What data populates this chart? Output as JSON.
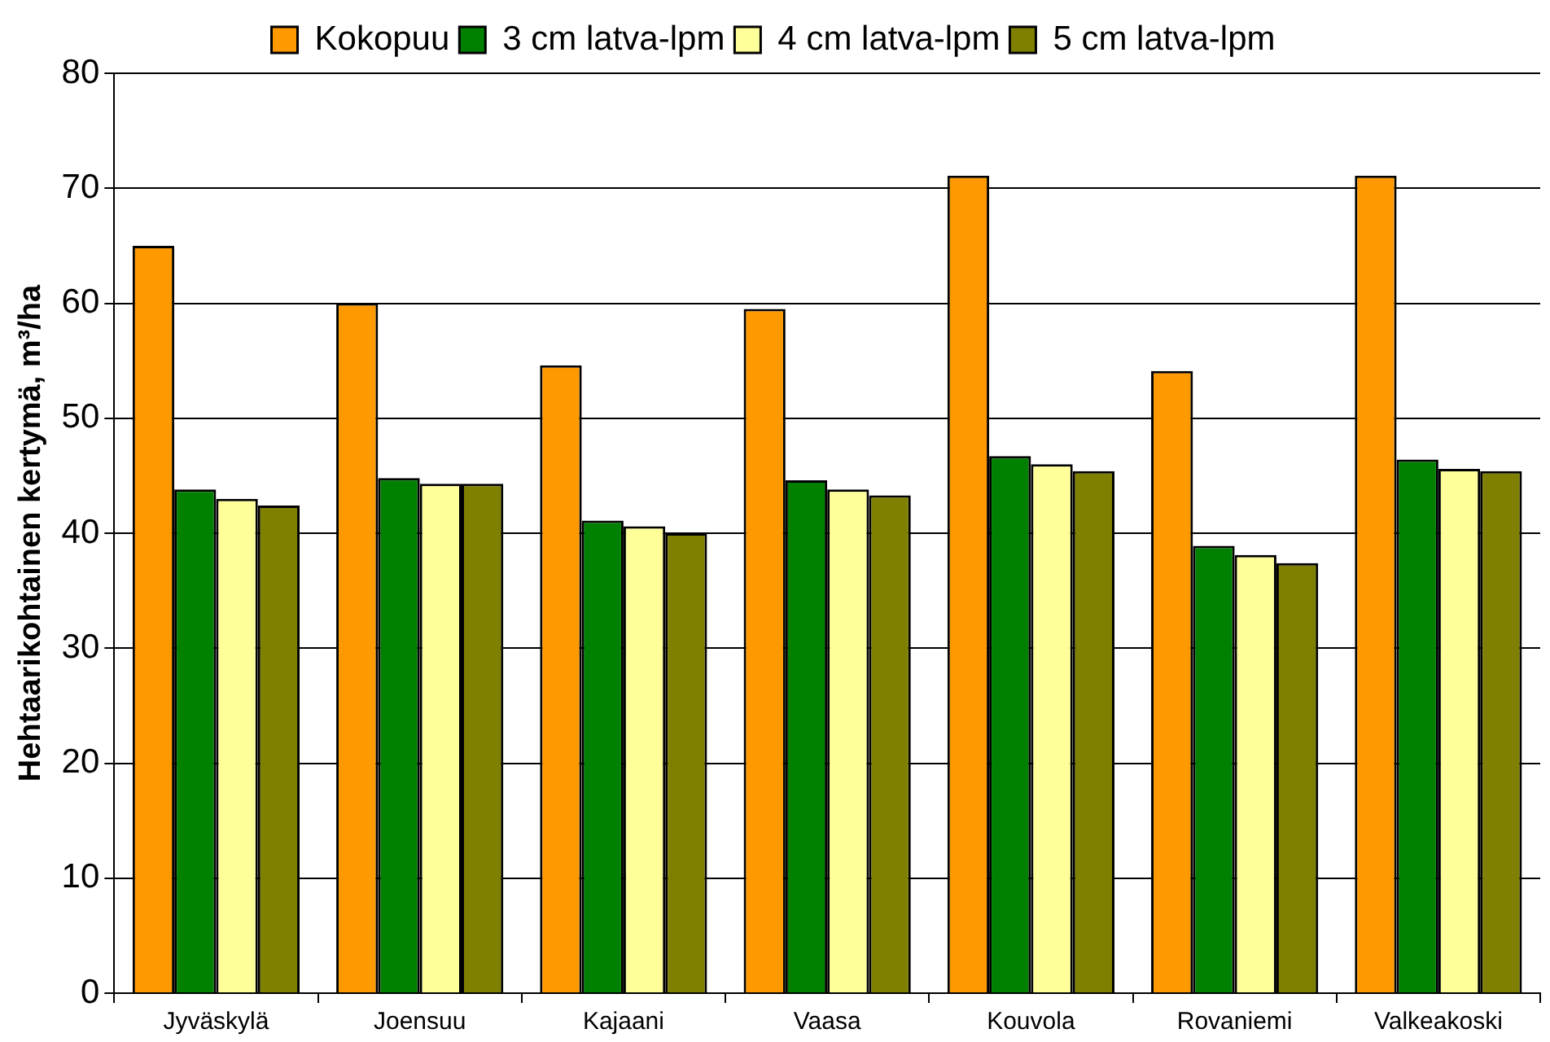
{
  "chart_data": {
    "type": "bar",
    "ylabel": "Hehtaarikohtainen kertymä, m³/ha",
    "categories": [
      "Jyväskylä",
      "Joensuu",
      "Kajaani",
      "Vaasa",
      "Kouvola",
      "Rovaniemi",
      "Valkeakoski"
    ],
    "series": [
      {
        "name": "Kokopuu",
        "color": "#ff9900",
        "values": [
          65,
          60,
          54.6,
          59.5,
          71.1,
          54.1,
          71.1
        ]
      },
      {
        "name": "3 cm latva-lpm",
        "color": "#008000",
        "values": [
          43.8,
          44.8,
          41.1,
          44.6,
          46.7,
          38.9,
          46.4
        ]
      },
      {
        "name": "4 cm latva-lpm",
        "color": "#ffff99",
        "values": [
          43,
          44.3,
          40.6,
          43.8,
          46,
          38.1,
          45.6
        ]
      },
      {
        "name": "5 cm latva-lpm",
        "color": "#808000",
        "values": [
          42.4,
          44.3,
          40,
          43.3,
          45.4,
          37.4,
          45.4
        ]
      }
    ],
    "ylim": [
      0,
      80
    ],
    "yticks": [
      0,
      10,
      20,
      30,
      40,
      50,
      60,
      70,
      80
    ],
    "grid": "y",
    "legend": "top"
  }
}
